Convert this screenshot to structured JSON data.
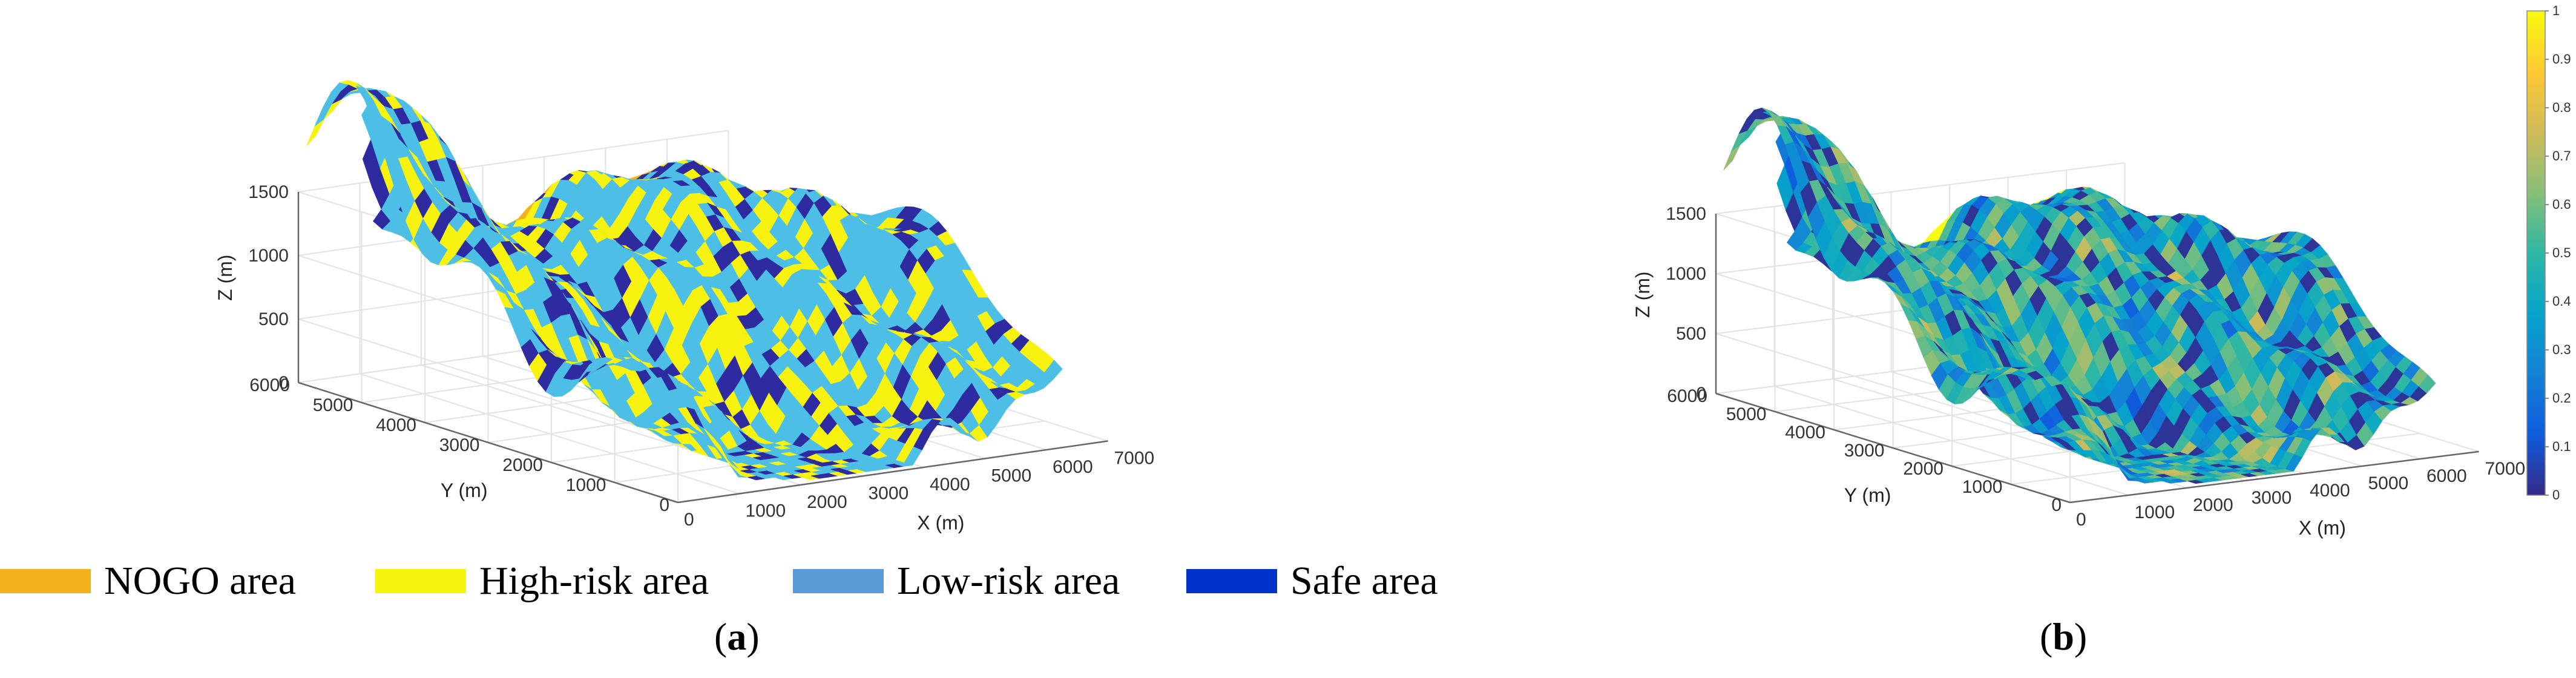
{
  "colors": {
    "nogo": "#F2B21B",
    "high_risk": "#F7F20F",
    "low_risk": "#4DBFE6",
    "safe": "#2E2AA0",
    "axis": "#666666",
    "grid": "#e2e2e2"
  },
  "legend": [
    {
      "label": "NOGO area",
      "color": "#F2B21B"
    },
    {
      "label": "High-risk area",
      "color": "#F7F20F"
    },
    {
      "label": "Low-risk area",
      "color": "#5B9BD5"
    },
    {
      "label": "Safe area",
      "color": "#0033CC"
    }
  ],
  "captions": {
    "a": {
      "open": "(",
      "letter": "a",
      "close": ")"
    },
    "b": {
      "open": "(",
      "letter": "b",
      "close": ")"
    }
  },
  "chart_data": [
    {
      "type": "3d-surface",
      "panel": "a",
      "xlabel": "X (m)",
      "ylabel": "Y (m)",
      "zlabel": "Z (m)",
      "xlim": [
        0,
        7000
      ],
      "ylim": [
        0,
        6000
      ],
      "zlim": [
        0,
        1500
      ],
      "xticks": [
        "0",
        "1000",
        "2000",
        "3000",
        "4000",
        "5000",
        "6000",
        "7000"
      ],
      "yticks": [
        "0",
        "1000",
        "2000",
        "3000",
        "4000",
        "5000",
        "6000"
      ],
      "zticks": [
        "0",
        "500",
        "1000",
        "1500"
      ],
      "grid": true,
      "coloring": "categorical",
      "categories": [
        "NOGO area",
        "High-risk area",
        "Low-risk area",
        "Safe area"
      ]
    },
    {
      "type": "3d-surface",
      "panel": "b",
      "xlabel": "X (m)",
      "ylabel": "Y (m)",
      "zlabel": "Z (m)",
      "xlim": [
        0,
        7000
      ],
      "ylim": [
        0,
        6000
      ],
      "zlim": [
        0,
        1500
      ],
      "xticks": [
        "0",
        "1000",
        "2000",
        "3000",
        "4000",
        "5000",
        "6000",
        "7000"
      ],
      "yticks": [
        "0",
        "1000",
        "2000",
        "3000",
        "4000",
        "5000",
        "6000"
      ],
      "zticks": [
        "0",
        "500",
        "1000",
        "1500"
      ],
      "grid": true,
      "coloring": "continuous",
      "colormap": "parula",
      "colorbar": {
        "range": [
          0,
          1
        ],
        "ticks": [
          "0",
          "0.1",
          "0.2",
          "0.3",
          "0.4",
          "0.5",
          "0.6",
          "0.7",
          "0.8",
          "0.9",
          "1"
        ],
        "colors": [
          "#352A87",
          "#0F5CDD",
          "#1481D6",
          "#06A4CA",
          "#2EB7A4",
          "#87BF77",
          "#D1BB59",
          "#FEC832",
          "#F9FB0E"
        ]
      }
    }
  ]
}
